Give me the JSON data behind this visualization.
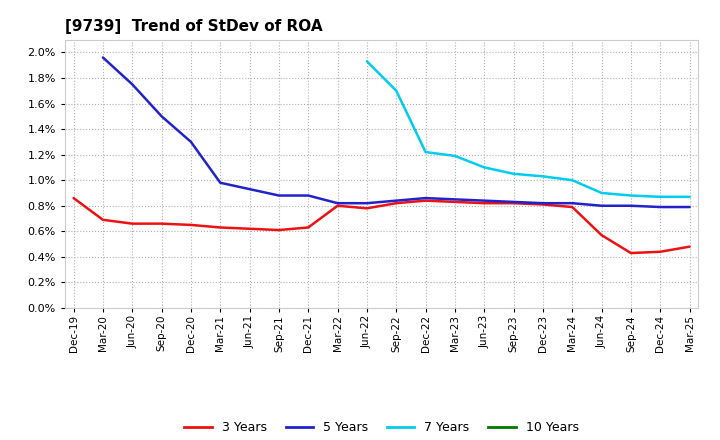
{
  "title": "[9739]  Trend of StDev of ROA",
  "background_color": "#ffffff",
  "plot_bg_color": "#ffffff",
  "grid_color": "#b0b0b0",
  "ylim": [
    0.0,
    0.021
  ],
  "yticks": [
    0.0,
    0.002,
    0.004,
    0.006,
    0.008,
    0.01,
    0.012,
    0.014,
    0.016,
    0.018,
    0.02
  ],
  "x_labels": [
    "Dec-19",
    "Mar-20",
    "Jun-20",
    "Sep-20",
    "Dec-20",
    "Mar-21",
    "Jun-21",
    "Sep-21",
    "Dec-21",
    "Mar-22",
    "Jun-22",
    "Sep-22",
    "Dec-22",
    "Mar-23",
    "Jun-23",
    "Sep-23",
    "Dec-23",
    "Mar-24",
    "Jun-24",
    "Sep-24",
    "Dec-24",
    "Mar-25"
  ],
  "series": {
    "3yr": {
      "color": "#ee1111",
      "values": [
        0.0086,
        0.0069,
        0.0066,
        0.0066,
        0.0065,
        0.0063,
        0.0062,
        0.0061,
        0.0063,
        0.008,
        0.0078,
        0.0082,
        0.0084,
        0.0083,
        0.0082,
        0.0082,
        0.0081,
        0.0079,
        0.0057,
        0.0043,
        0.0044,
        0.0048
      ]
    },
    "5yr": {
      "color": "#2222cc",
      "values": [
        null,
        0.0196,
        0.0175,
        0.015,
        0.013,
        0.0098,
        0.0093,
        0.0088,
        0.0088,
        0.0082,
        0.0082,
        0.0084,
        0.0086,
        0.0085,
        0.0084,
        0.0083,
        0.0082,
        0.0082,
        0.008,
        0.008,
        0.0079,
        0.0079
      ]
    },
    "7yr": {
      "color": "#00ccee",
      "values": [
        null,
        null,
        null,
        null,
        null,
        null,
        null,
        null,
        null,
        null,
        0.0193,
        0.017,
        0.0122,
        0.0119,
        0.011,
        0.0105,
        0.0103,
        0.01,
        0.009,
        0.0088,
        0.0087,
        0.0087
      ]
    },
    "10yr": {
      "color": "#007700",
      "values": [
        null,
        null,
        null,
        null,
        null,
        null,
        null,
        null,
        null,
        null,
        null,
        null,
        null,
        null,
        null,
        null,
        null,
        null,
        null,
        null,
        null,
        null
      ]
    }
  },
  "legend_labels": [
    "3 Years",
    "5 Years",
    "7 Years",
    "10 Years"
  ],
  "legend_colors": [
    "#ee1111",
    "#2222cc",
    "#00ccee",
    "#007700"
  ]
}
